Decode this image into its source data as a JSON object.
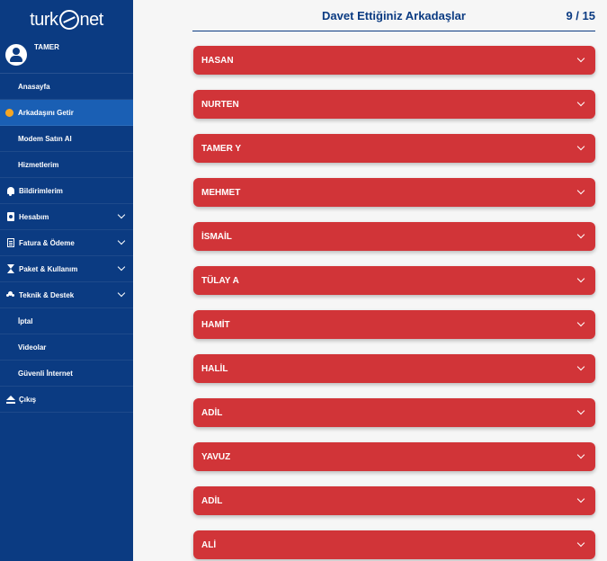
{
  "brand": {
    "logo_left": "turk",
    "logo_right": "net"
  },
  "user": {
    "name": "TAMER"
  },
  "sidebar": {
    "items": [
      {
        "label": "Anasayfa"
      },
      {
        "label": "Arkadaşını Getir"
      },
      {
        "label": "Modem Satın Al"
      },
      {
        "label": "Hizmetlerim"
      },
      {
        "label": "Bildirimlerim"
      },
      {
        "label": "Hesabım"
      },
      {
        "label": "Fatura & Ödeme"
      },
      {
        "label": "Paket & Kullanım"
      },
      {
        "label": "Teknik & Destek"
      },
      {
        "label": "İptal"
      },
      {
        "label": "Videolar"
      },
      {
        "label": "Güvenli İnternet"
      },
      {
        "label": "Çıkış"
      }
    ]
  },
  "main": {
    "title": "Davet Ettiğiniz Arkadaşlar",
    "counter": "9 / 15",
    "friends": [
      {
        "name": "HASAN"
      },
      {
        "name": "NURTEN"
      },
      {
        "name": "TAMER Y"
      },
      {
        "name": "MEHMET"
      },
      {
        "name": "İSMAİL"
      },
      {
        "name": "TÜLAY A"
      },
      {
        "name": "HAMİT"
      },
      {
        "name": "HALİL"
      },
      {
        "name": "ADİL"
      },
      {
        "name": "YAVUZ"
      },
      {
        "name": "ADİL"
      },
      {
        "name": "ALİ"
      }
    ]
  },
  "colors": {
    "sidebar": "#0b3b82",
    "active": "#1a5fb4",
    "card": "#d13438",
    "badge": "#f5a623"
  }
}
